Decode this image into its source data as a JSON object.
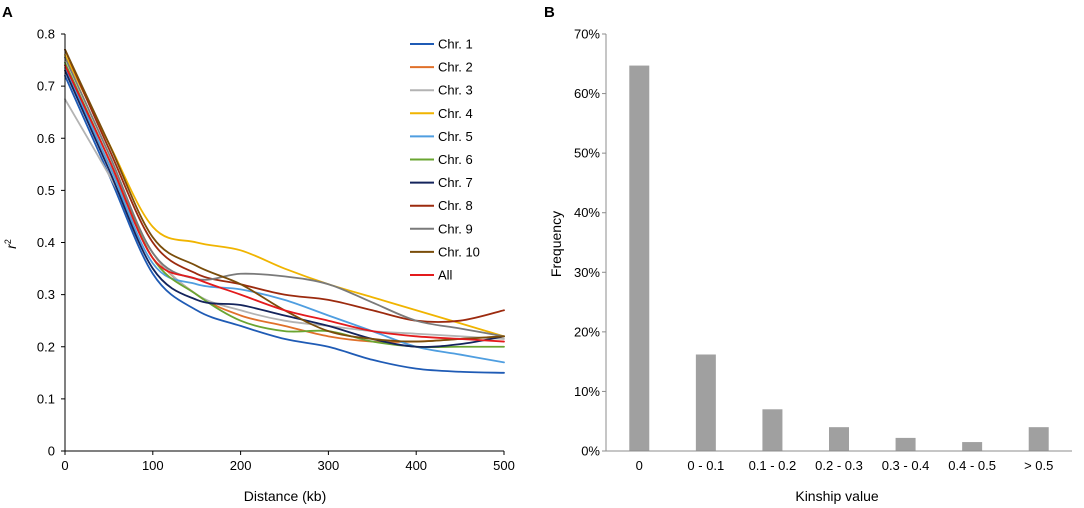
{
  "chart_data": [
    {
      "panel_label": "A",
      "type": "line",
      "title": "",
      "xlabel": "Distance (kb)",
      "ylabel": "r",
      "ylabel_sup": "2",
      "xlim": [
        0,
        500
      ],
      "ylim": [
        0,
        0.8
      ],
      "xticks": [
        0,
        100,
        200,
        300,
        400,
        500
      ],
      "yticks": [
        "0",
        "0.1",
        "0.2",
        "0.3",
        "0.4",
        "0.5",
        "0.6",
        "0.7",
        "0.8"
      ],
      "ytick_values": [
        0,
        0.1,
        0.2,
        0.3,
        0.4,
        0.5,
        0.6,
        0.7,
        0.8
      ],
      "grid": false,
      "legend_position": "top-right",
      "series": [
        {
          "name": "Chr. 1",
          "color": "#1f5bb5",
          "x": [
            0,
            50,
            100,
            150,
            200,
            250,
            300,
            350,
            400,
            450,
            500
          ],
          "values": [
            0.72,
            0.53,
            0.34,
            0.27,
            0.24,
            0.215,
            0.2,
            0.175,
            0.158,
            0.152,
            0.15
          ]
        },
        {
          "name": "Chr. 2",
          "color": "#e0702a",
          "x": [
            0,
            50,
            100,
            150,
            200,
            250,
            300,
            350,
            400,
            450,
            500
          ],
          "values": [
            0.74,
            0.55,
            0.38,
            0.3,
            0.26,
            0.24,
            0.22,
            0.21,
            0.21,
            0.215,
            0.22
          ]
        },
        {
          "name": "Chr. 3",
          "color": "#b3b3b3",
          "x": [
            0,
            50,
            100,
            150,
            200,
            250,
            300,
            350,
            400,
            450,
            500
          ],
          "values": [
            0.675,
            0.53,
            0.38,
            0.3,
            0.27,
            0.25,
            0.24,
            0.23,
            0.225,
            0.22,
            0.215
          ]
        },
        {
          "name": "Chr. 4",
          "color": "#f0b400",
          "x": [
            0,
            50,
            100,
            150,
            200,
            250,
            300,
            350,
            400,
            450,
            500
          ],
          "values": [
            0.76,
            0.59,
            0.43,
            0.4,
            0.385,
            0.35,
            0.32,
            0.295,
            0.27,
            0.245,
            0.22
          ]
        },
        {
          "name": "Chr. 5",
          "color": "#4f9ee0",
          "x": [
            0,
            50,
            100,
            150,
            200,
            250,
            300,
            350,
            400,
            450,
            500
          ],
          "values": [
            0.735,
            0.55,
            0.36,
            0.32,
            0.31,
            0.29,
            0.26,
            0.23,
            0.2,
            0.185,
            0.17
          ]
        },
        {
          "name": "Chr. 6",
          "color": "#6aa531",
          "x": [
            0,
            50,
            100,
            150,
            200,
            250,
            300,
            350,
            400,
            450,
            500
          ],
          "values": [
            0.745,
            0.56,
            0.37,
            0.3,
            0.25,
            0.23,
            0.23,
            0.21,
            0.2,
            0.2,
            0.2
          ]
        },
        {
          "name": "Chr. 7",
          "color": "#14245c",
          "x": [
            0,
            50,
            100,
            150,
            200,
            250,
            300,
            350,
            400,
            450,
            500
          ],
          "values": [
            0.73,
            0.54,
            0.35,
            0.29,
            0.28,
            0.26,
            0.24,
            0.215,
            0.2,
            0.205,
            0.22
          ]
        },
        {
          "name": "Chr. 8",
          "color": "#9c2a0e",
          "x": [
            0,
            50,
            100,
            150,
            200,
            250,
            300,
            350,
            400,
            450,
            500
          ],
          "values": [
            0.77,
            0.58,
            0.4,
            0.34,
            0.32,
            0.3,
            0.29,
            0.27,
            0.25,
            0.25,
            0.27
          ]
        },
        {
          "name": "Chr. 9",
          "color": "#7a7a7a",
          "x": [
            0,
            50,
            100,
            150,
            200,
            250,
            300,
            350,
            400,
            450,
            500
          ],
          "values": [
            0.755,
            0.57,
            0.38,
            0.33,
            0.34,
            0.335,
            0.32,
            0.285,
            0.25,
            0.235,
            0.22
          ]
        },
        {
          "name": "Chr. 10",
          "color": "#7a4d0a",
          "x": [
            0,
            50,
            100,
            150,
            200,
            250,
            300,
            350,
            400,
            450,
            500
          ],
          "values": [
            0.77,
            0.59,
            0.41,
            0.355,
            0.32,
            0.27,
            0.23,
            0.215,
            0.21,
            0.215,
            0.22
          ]
        },
        {
          "name": "All",
          "color": "#e31a1c",
          "x": [
            0,
            50,
            100,
            150,
            200,
            250,
            300,
            350,
            400,
            450,
            500
          ],
          "values": [
            0.74,
            0.56,
            0.37,
            0.33,
            0.3,
            0.27,
            0.25,
            0.23,
            0.22,
            0.215,
            0.21
          ]
        }
      ]
    },
    {
      "panel_label": "B",
      "type": "bar",
      "title": "",
      "xlabel": "Kinship value",
      "ylabel": "Frequency",
      "categories": [
        "0",
        "0 - 0.1",
        "0.1 - 0.2",
        "0.2 - 0.3",
        "0.3 - 0.4",
        "0.4 - 0.5",
        "> 0.5"
      ],
      "values": [
        0.647,
        0.162,
        0.07,
        0.04,
        0.022,
        0.015,
        0.04
      ],
      "ylim": [
        0,
        0.7
      ],
      "ytick_values": [
        0,
        0.1,
        0.2,
        0.3,
        0.4,
        0.5,
        0.6,
        0.7
      ],
      "yticks": [
        "0%",
        "10%",
        "20%",
        "30%",
        "40%",
        "50%",
        "60%",
        "70%"
      ],
      "bar_color": "#a0a0a0",
      "grid": false
    }
  ]
}
